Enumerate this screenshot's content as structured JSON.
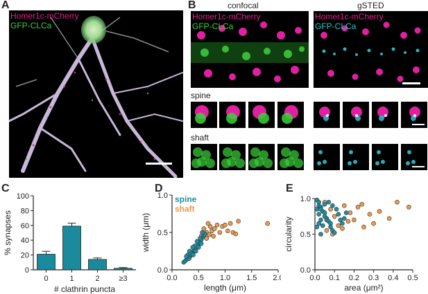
{
  "panels": {
    "A": {
      "letter": "A",
      "label_homer": "Homer1c-mCherry",
      "label_gfp": "GFP-CLCa"
    },
    "B": {
      "letter": "B",
      "col_confocal": "confocal",
      "col_gsted": "gSTED",
      "label_homer_left": "Homer1c-mCherry",
      "label_gfp_left": "GFP-CLCa",
      "label_homer_right": "Homer1c-mCherry",
      "label_gfp_right": "GFP-CLCa",
      "row_spine": "spine",
      "row_shaft": "shaft"
    },
    "C": {
      "letter": "C"
    },
    "D": {
      "letter": "D"
    },
    "E": {
      "letter": "E"
    }
  },
  "colors": {
    "magenta": "#e0208c",
    "green": "#3ad13a",
    "cyan": "#2ac0d0",
    "bar_teal": "#1a8a9c",
    "spine_teal": "#1f8fa3",
    "shaft_orange": "#ee9a4a"
  },
  "chart_data": [
    {
      "id": "C",
      "type": "bar",
      "categories": [
        "0",
        "1",
        "2",
        "≥3"
      ],
      "values": [
        21,
        59,
        14,
        2
      ],
      "errors": [
        4,
        4,
        2,
        1
      ],
      "xlabel": "# clathrin puncta",
      "ylabel": "% synapses",
      "ylim": [
        0,
        100
      ],
      "yticks": [
        "0",
        "20",
        "40",
        "60",
        "80",
        "100"
      ]
    },
    {
      "id": "D",
      "type": "scatter",
      "xlabel": "length (μm)",
      "ylabel": "width (μm)",
      "xlim": [
        0,
        2.0
      ],
      "ylim": [
        0,
        1.0
      ],
      "xticks": [
        "0.0",
        "0.5",
        "1.0",
        "1.5",
        "2.0"
      ],
      "yticks": [
        "0.0",
        "0.5",
        "1.0"
      ],
      "legend": [
        "spine",
        "shaft"
      ],
      "series": [
        {
          "name": "spine",
          "points": [
            [
              0.22,
              0.1
            ],
            [
              0.25,
              0.12
            ],
            [
              0.28,
              0.14
            ],
            [
              0.3,
              0.16
            ],
            [
              0.32,
              0.15
            ],
            [
              0.34,
              0.18
            ],
            [
              0.36,
              0.2
            ],
            [
              0.38,
              0.22
            ],
            [
              0.4,
              0.24
            ],
            [
              0.42,
              0.26
            ],
            [
              0.44,
              0.28
            ],
            [
              0.46,
              0.3
            ],
            [
              0.48,
              0.32
            ],
            [
              0.5,
              0.34
            ],
            [
              0.52,
              0.36
            ],
            [
              0.55,
              0.4
            ],
            [
              0.58,
              0.44
            ],
            [
              0.6,
              0.46
            ],
            [
              0.62,
              0.48
            ],
            [
              0.3,
              0.2
            ],
            [
              0.35,
              0.22
            ],
            [
              0.4,
              0.2
            ],
            [
              0.45,
              0.25
            ],
            [
              0.5,
              0.3
            ],
            [
              0.55,
              0.35
            ],
            [
              0.27,
              0.18
            ],
            [
              0.33,
              0.25
            ],
            [
              0.43,
              0.32
            ],
            [
              0.53,
              0.42
            ],
            [
              0.47,
              0.38
            ],
            [
              0.39,
              0.3
            ],
            [
              0.57,
              0.5
            ]
          ]
        },
        {
          "name": "shaft",
          "points": [
            [
              0.55,
              0.45
            ],
            [
              0.65,
              0.5
            ],
            [
              0.7,
              0.47
            ],
            [
              0.75,
              0.52
            ],
            [
              0.8,
              0.55
            ],
            [
              0.85,
              0.6
            ],
            [
              0.9,
              0.5
            ],
            [
              0.95,
              0.58
            ],
            [
              1.0,
              0.6
            ],
            [
              1.05,
              0.52
            ],
            [
              1.1,
              0.62
            ],
            [
              1.15,
              0.5
            ],
            [
              1.2,
              0.48
            ],
            [
              0.65,
              0.42
            ],
            [
              0.72,
              0.58
            ],
            [
              1.8,
              0.62
            ],
            [
              0.6,
              0.55
            ],
            [
              0.68,
              0.62
            ],
            [
              0.78,
              0.45
            ],
            [
              1.25,
              0.65
            ]
          ]
        }
      ]
    },
    {
      "id": "E",
      "type": "scatter",
      "xlabel": "area (μm²)",
      "ylabel": "circularity",
      "xlim": [
        0,
        0.5
      ],
      "ylim": [
        0,
        1.0
      ],
      "xticks": [
        "0.0",
        "0.1",
        "0.2",
        "0.3",
        "0.4",
        "0.5"
      ],
      "yticks": [
        "0.0",
        "0.5",
        "1.0"
      ],
      "series": [
        {
          "name": "spine",
          "points": [
            [
              0.01,
              0.98
            ],
            [
              0.02,
              0.95
            ],
            [
              0.02,
              0.9
            ],
            [
              0.03,
              0.88
            ],
            [
              0.03,
              0.85
            ],
            [
              0.04,
              0.82
            ],
            [
              0.05,
              0.8
            ],
            [
              0.05,
              0.75
            ],
            [
              0.06,
              0.72
            ],
            [
              0.06,
              0.7
            ],
            [
              0.07,
              0.68
            ],
            [
              0.08,
              0.65
            ],
            [
              0.08,
              0.6
            ],
            [
              0.09,
              0.55
            ],
            [
              0.1,
              0.52
            ],
            [
              0.04,
              0.62
            ],
            [
              0.03,
              0.7
            ],
            [
              0.02,
              0.78
            ],
            [
              0.01,
              0.85
            ],
            [
              0.05,
              0.92
            ],
            [
              0.07,
              0.95
            ],
            [
              0.09,
              0.9
            ],
            [
              0.11,
              0.85
            ],
            [
              0.12,
              0.78
            ],
            [
              0.13,
              0.7
            ],
            [
              0.14,
              0.65
            ],
            [
              0.15,
              0.72
            ],
            [
              0.16,
              0.8
            ],
            [
              0.03,
              0.5
            ],
            [
              0.01,
              0.6
            ],
            [
              0.02,
              0.65
            ]
          ]
        },
        {
          "name": "shaft",
          "points": [
            [
              0.05,
              0.95
            ],
            [
              0.08,
              0.85
            ],
            [
              0.1,
              0.75
            ],
            [
              0.12,
              0.62
            ],
            [
              0.15,
              0.9
            ],
            [
              0.18,
              0.8
            ],
            [
              0.2,
              0.7
            ],
            [
              0.22,
              0.88
            ],
            [
              0.25,
              0.6
            ],
            [
              0.28,
              0.78
            ],
            [
              0.3,
              0.65
            ],
            [
              0.33,
              0.82
            ],
            [
              0.38,
              0.72
            ],
            [
              0.42,
              0.95
            ],
            [
              0.48,
              0.88
            ],
            [
              0.06,
              0.55
            ],
            [
              0.09,
              0.5
            ],
            [
              0.14,
              0.58
            ],
            [
              0.17,
              0.68
            ],
            [
              0.24,
              0.92
            ]
          ]
        }
      ]
    }
  ]
}
